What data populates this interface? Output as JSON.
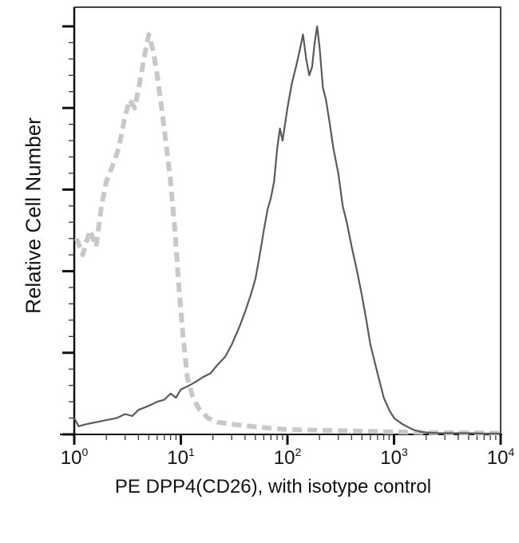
{
  "chart_data": {
    "type": "line",
    "title": "",
    "xlabel": "PE DPP4(CD26), with isotype control",
    "ylabel": "Relative Cell Number",
    "xscale": "log",
    "xlim": [
      1,
      10000
    ],
    "x_ticks": [
      {
        "base": "10",
        "exp": "0",
        "value": 1
      },
      {
        "base": "10",
        "exp": "1",
        "value": 10
      },
      {
        "base": "10",
        "exp": "2",
        "value": 100
      },
      {
        "base": "10",
        "exp": "3",
        "value": 1000
      },
      {
        "base": "10",
        "exp": "4",
        "value": 10000
      }
    ],
    "y_ticks_unlabeled": 6,
    "ylim": [
      0,
      100
    ],
    "grid": false,
    "legend": null,
    "series": [
      {
        "name": "Isotype control",
        "style": "dashed",
        "color": "#c8c8c8",
        "x": [
          1.05,
          1.2,
          1.4,
          1.6,
          1.8,
          2.0,
          2.3,
          2.6,
          3.0,
          3.3,
          3.7,
          4.1,
          4.5,
          5.0,
          5.5,
          6.0,
          6.6,
          7.2,
          8.0,
          8.8,
          9.6,
          10.5,
          11.5,
          13,
          15,
          18,
          22,
          30,
          45,
          70,
          100,
          200,
          500,
          1000,
          3000,
          10000
        ],
        "y": [
          48,
          44,
          50,
          46,
          56,
          62,
          66,
          70,
          78,
          82,
          80,
          86,
          92,
          98,
          94,
          88,
          80,
          72,
          62,
          50,
          36,
          24,
          14,
          9,
          6,
          4,
          3,
          2.5,
          2,
          1.5,
          1.2,
          1,
          0.8,
          0.6,
          0.4,
          0.3
        ]
      },
      {
        "name": "PE DPP4(CD26)",
        "style": "solid",
        "color": "#5a5a5a",
        "x": [
          1.0,
          1.1,
          1.3,
          1.6,
          2.0,
          2.5,
          3.0,
          3.5,
          4.0,
          5.0,
          6.0,
          7.0,
          8.0,
          9.0,
          10,
          12,
          14,
          16,
          19,
          22,
          26,
          30,
          35,
          40,
          45,
          50,
          55,
          60,
          65,
          70,
          75,
          80,
          85,
          90,
          100,
          110,
          120,
          130,
          140,
          150,
          160,
          170,
          180,
          190,
          200,
          215,
          230,
          250,
          270,
          300,
          330,
          360,
          400,
          450,
          500,
          550,
          600,
          700,
          800,
          900,
          1000,
          1200,
          1500,
          1800,
          2200,
          2700,
          3500,
          5000,
          7000,
          10000
        ],
        "y": [
          4,
          2,
          2.5,
          3,
          3.5,
          4,
          5,
          4.5,
          6,
          7,
          8,
          8.5,
          10,
          9,
          11,
          12,
          13,
          14,
          15,
          17,
          19,
          22,
          26,
          30,
          34,
          38,
          44,
          50,
          55,
          58,
          62,
          70,
          75,
          72,
          80,
          86,
          90,
          94,
          98,
          92,
          88,
          90,
          96,
          100,
          95,
          85,
          82,
          76,
          70,
          64,
          56,
          52,
          46,
          40,
          34,
          28,
          22,
          15,
          9,
          6,
          4,
          2.5,
          1.2,
          0.6,
          0.4,
          0.3,
          0.3,
          0.3,
          0.2,
          0.2
        ]
      }
    ]
  },
  "plot": {
    "frame_color": "#444444",
    "axis_color": "#111111"
  }
}
